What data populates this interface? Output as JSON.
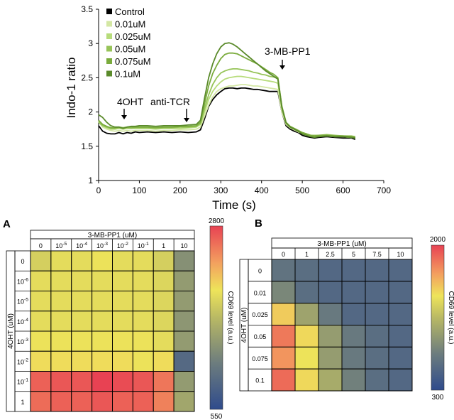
{
  "chart_data": [
    {
      "type": "line",
      "xlabel": "Time (s)",
      "ylabel": "Indo-1 ratio",
      "xlim": [
        0,
        700
      ],
      "ylim": [
        1,
        3.5
      ],
      "xticks": [
        0,
        100,
        200,
        300,
        400,
        500,
        600,
        700
      ],
      "yticks": [
        1,
        1.5,
        2,
        2.5,
        3,
        3.5
      ],
      "annotations": [
        {
          "text": "4OHT",
          "x": 55,
          "y": 1.78
        },
        {
          "text": "anti-TCR",
          "x": 230,
          "y": 1.78
        },
        {
          "text": "3-MB-PP1",
          "x": 440,
          "y": 2.55
        }
      ],
      "x": [
        0,
        10,
        20,
        30,
        40,
        50,
        60,
        70,
        80,
        90,
        100,
        120,
        140,
        160,
        180,
        200,
        220,
        240,
        250,
        260,
        270,
        280,
        290,
        300,
        310,
        320,
        330,
        340,
        350,
        360,
        370,
        380,
        390,
        400,
        410,
        420,
        430,
        440,
        450,
        460,
        470,
        480,
        490,
        500,
        510,
        520,
        530,
        540,
        560,
        580,
        600,
        620,
        630
      ],
      "series": [
        {
          "name": "Control",
          "color": "#000000",
          "values": [
            1.8,
            1.72,
            1.69,
            1.68,
            1.68,
            1.7,
            1.68,
            1.7,
            1.69,
            1.71,
            1.7,
            1.71,
            1.7,
            1.71,
            1.7,
            1.71,
            1.7,
            1.71,
            1.74,
            1.9,
            2.08,
            2.18,
            2.25,
            2.3,
            2.34,
            2.35,
            2.35,
            2.34,
            2.35,
            2.35,
            2.34,
            2.33,
            2.33,
            2.32,
            2.31,
            2.3,
            2.3,
            2.3,
            2.0,
            1.8,
            1.75,
            1.72,
            1.7,
            1.66,
            1.64,
            1.63,
            1.62,
            1.63,
            1.64,
            1.63,
            1.62,
            1.62,
            1.6
          ]
        },
        {
          "name": "0.01uM",
          "color": "#d4e7a4",
          "values": [
            1.86,
            1.78,
            1.75,
            1.73,
            1.72,
            1.73,
            1.72,
            1.73,
            1.72,
            1.73,
            1.73,
            1.73,
            1.72,
            1.73,
            1.73,
            1.74,
            1.74,
            1.75,
            1.78,
            1.94,
            2.1,
            2.22,
            2.3,
            2.34,
            2.36,
            2.38,
            2.38,
            2.39,
            2.4,
            2.4,
            2.39,
            2.38,
            2.38,
            2.37,
            2.36,
            2.35,
            2.34,
            2.33,
            2.0,
            1.82,
            1.77,
            1.74,
            1.71,
            1.69,
            1.67,
            1.65,
            1.64,
            1.65,
            1.65,
            1.64,
            1.64,
            1.63,
            1.62
          ]
        },
        {
          "name": "0.025uM",
          "color": "#b7dc7b",
          "values": [
            1.87,
            1.8,
            1.77,
            1.75,
            1.75,
            1.76,
            1.75,
            1.76,
            1.76,
            1.76,
            1.76,
            1.76,
            1.75,
            1.76,
            1.76,
            1.76,
            1.77,
            1.78,
            1.82,
            2.0,
            2.18,
            2.3,
            2.38,
            2.44,
            2.48,
            2.5,
            2.51,
            2.52,
            2.52,
            2.51,
            2.5,
            2.49,
            2.48,
            2.47,
            2.46,
            2.45,
            2.44,
            2.42,
            2.05,
            1.84,
            1.78,
            1.75,
            1.72,
            1.7,
            1.68,
            1.66,
            1.65,
            1.66,
            1.66,
            1.65,
            1.65,
            1.64,
            1.63
          ]
        },
        {
          "name": "0.05uM",
          "color": "#97c459",
          "values": [
            1.85,
            1.8,
            1.78,
            1.76,
            1.76,
            1.77,
            1.77,
            1.77,
            1.76,
            1.77,
            1.77,
            1.77,
            1.77,
            1.77,
            1.77,
            1.78,
            1.78,
            1.79,
            1.83,
            2.05,
            2.25,
            2.4,
            2.5,
            2.57,
            2.6,
            2.62,
            2.63,
            2.63,
            2.62,
            2.61,
            2.6,
            2.58,
            2.57,
            2.55,
            2.54,
            2.52,
            2.51,
            2.49,
            2.08,
            1.85,
            1.79,
            1.76,
            1.73,
            1.7,
            1.68,
            1.66,
            1.66,
            1.66,
            1.67,
            1.66,
            1.65,
            1.65,
            1.64
          ]
        },
        {
          "name": "0.075uM",
          "color": "#7aab3c",
          "values": [
            1.88,
            1.82,
            1.79,
            1.77,
            1.77,
            1.78,
            1.77,
            1.78,
            1.78,
            1.78,
            1.78,
            1.78,
            1.77,
            1.78,
            1.78,
            1.79,
            1.79,
            1.8,
            1.85,
            2.12,
            2.38,
            2.56,
            2.68,
            2.78,
            2.84,
            2.86,
            2.86,
            2.85,
            2.82,
            2.79,
            2.76,
            2.73,
            2.7,
            2.66,
            2.62,
            2.58,
            2.55,
            2.5,
            2.08,
            1.85,
            1.79,
            1.76,
            1.73,
            1.7,
            1.68,
            1.66,
            1.65,
            1.66,
            1.66,
            1.65,
            1.65,
            1.64,
            1.63
          ]
        },
        {
          "name": "0.1uM",
          "color": "#5a8a2a",
          "values": [
            1.96,
            1.92,
            1.85,
            1.8,
            1.78,
            1.78,
            1.76,
            1.78,
            1.79,
            1.79,
            1.8,
            1.8,
            1.79,
            1.8,
            1.8,
            1.8,
            1.81,
            1.82,
            1.88,
            2.2,
            2.5,
            2.7,
            2.85,
            2.95,
            3.0,
            3.01,
            2.99,
            2.95,
            2.9,
            2.85,
            2.8,
            2.75,
            2.7,
            2.65,
            2.6,
            2.56,
            2.52,
            2.48,
            2.06,
            1.84,
            1.78,
            1.75,
            1.72,
            1.68,
            1.66,
            1.64,
            1.63,
            1.64,
            1.65,
            1.64,
            1.64,
            1.63,
            1.62
          ]
        }
      ]
    },
    {
      "type": "heatmap",
      "panel": "A",
      "col_title": "3-MB-PP1 (uM)",
      "row_title": "4OHT (uM)",
      "columns": [
        {
          "base": "0",
          "exp": ""
        },
        {
          "base": "10",
          "exp": "-5"
        },
        {
          "base": "10",
          "exp": "-4"
        },
        {
          "base": "10",
          "exp": "-3"
        },
        {
          "base": "10",
          "exp": "-2"
        },
        {
          "base": "10",
          "exp": "-1"
        },
        {
          "base": "1",
          "exp": ""
        },
        {
          "base": "10",
          "exp": ""
        }
      ],
      "rows": [
        {
          "base": "0",
          "exp": ""
        },
        {
          "base": "10",
          "exp": "-6"
        },
        {
          "base": "10",
          "exp": "-5"
        },
        {
          "base": "10",
          "exp": "-4"
        },
        {
          "base": "10",
          "exp": "-3"
        },
        {
          "base": "10",
          "exp": "-2"
        },
        {
          "base": "10",
          "exp": "-1"
        },
        {
          "base": "1",
          "exp": ""
        }
      ],
      "values": [
        [
          1850,
          1950,
          1950,
          2000,
          1950,
          1950,
          1850,
          1300
        ],
        [
          1950,
          1950,
          1950,
          1950,
          1950,
          1950,
          1900,
          1400
        ],
        [
          1950,
          1950,
          1950,
          1950,
          1950,
          1950,
          1900,
          1400
        ],
        [
          1950,
          1950,
          1950,
          1950,
          1950,
          1950,
          1900,
          1350
        ],
        [
          2000,
          2000,
          2000,
          2000,
          2000,
          2000,
          1950,
          1400
        ],
        [
          2050,
          2050,
          2050,
          2050,
          2050,
          2000,
          2050,
          900
        ],
        [
          2650,
          2700,
          2700,
          2800,
          2750,
          2700,
          2550,
          1400
        ],
        [
          2600,
          2650,
          2650,
          2700,
          2650,
          2650,
          2500,
          1500
        ]
      ],
      "colorbar": {
        "min": 550,
        "max": 2800,
        "label": "CD69 level (a.u.)"
      }
    },
    {
      "type": "heatmap",
      "panel": "B",
      "col_title": "3-MB-PP1 (uM)",
      "row_title": "4OHT (uM)",
      "columns": [
        "0",
        "1",
        "2.5",
        "5",
        "7.5",
        "10"
      ],
      "rows": [
        "0",
        "0.01",
        "0.025",
        "0.05",
        "0.075",
        "0.1"
      ],
      "values": [
        [
          650,
          600,
          550,
          550,
          550,
          550
        ],
        [
          800,
          600,
          550,
          550,
          550,
          550
        ],
        [
          1500,
          1000,
          700,
          550,
          550,
          550
        ],
        [
          1800,
          1450,
          950,
          700,
          600,
          550
        ],
        [
          1700,
          1400,
          950,
          700,
          600,
          550
        ],
        [
          1850,
          1450,
          1050,
          750,
          600,
          550
        ]
      ],
      "colorbar": {
        "min": 300,
        "max": 2000,
        "label": "CD69 level (a.u.)"
      }
    }
  ],
  "panel_labels": {
    "a": "A",
    "b": "B"
  }
}
